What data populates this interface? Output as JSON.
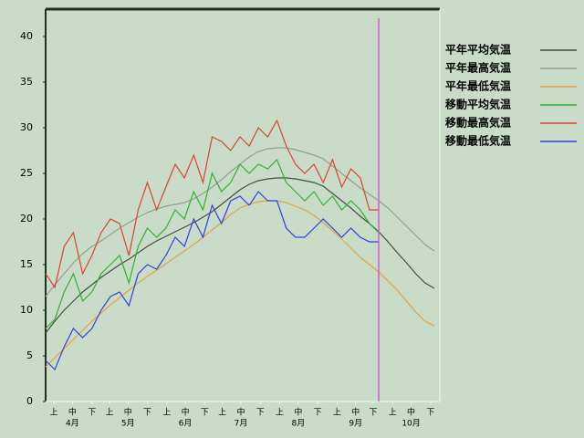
{
  "chart_data": {
    "type": "line",
    "x": [
      0,
      5,
      10,
      15,
      20,
      25,
      30,
      35,
      40,
      45,
      50,
      55,
      60,
      65,
      70,
      75,
      80,
      85,
      90,
      95,
      100,
      105,
      110,
      115,
      120,
      125,
      130,
      135,
      140,
      145,
      150,
      155,
      160,
      165,
      170,
      175,
      180,
      185,
      190,
      195,
      200,
      205,
      210
    ],
    "xlim": [
      0,
      213
    ],
    "ylim": [
      0,
      43
    ],
    "yticks": [
      0,
      5,
      10,
      15,
      20,
      25,
      30,
      35,
      40
    ],
    "xticks": [
      {
        "value": 4.5,
        "label": "上"
      },
      {
        "value": 14.5,
        "label": "中"
      },
      {
        "value": 25,
        "label": "下"
      },
      {
        "value": 34.5,
        "label": "上"
      },
      {
        "value": 44.5,
        "label": "中"
      },
      {
        "value": 55,
        "label": "下"
      },
      {
        "value": 65.5,
        "label": "上"
      },
      {
        "value": 75.5,
        "label": "中"
      },
      {
        "value": 86,
        "label": "下"
      },
      {
        "value": 95.5,
        "label": "上"
      },
      {
        "value": 105.5,
        "label": "中"
      },
      {
        "value": 116,
        "label": "下"
      },
      {
        "value": 126.5,
        "label": "上"
      },
      {
        "value": 136.5,
        "label": "中"
      },
      {
        "value": 147,
        "label": "下"
      },
      {
        "value": 157.5,
        "label": "上"
      },
      {
        "value": 167.5,
        "label": "中"
      },
      {
        "value": 177,
        "label": "下"
      },
      {
        "value": 187.5,
        "label": "上"
      },
      {
        "value": 197.5,
        "label": "中"
      },
      {
        "value": 208,
        "label": "下"
      }
    ],
    "month_ticks": [
      {
        "value": 14.5,
        "label": "4月"
      },
      {
        "value": 44.5,
        "label": "5月"
      },
      {
        "value": 75.5,
        "label": "6月"
      },
      {
        "value": 105.5,
        "label": "7月"
      },
      {
        "value": 136.5,
        "label": "8月"
      },
      {
        "value": 167.5,
        "label": "9月"
      },
      {
        "value": 197.5,
        "label": "10月"
      }
    ],
    "today_line": {
      "x": 180,
      "color": "#d060d0"
    },
    "series": [
      {
        "name": "平年平均気温",
        "color": "#405040",
        "values": [
          7.5,
          8.8,
          10,
          11,
          12,
          12.8,
          13.6,
          14.3,
          15,
          15.6,
          16.3,
          17,
          17.6,
          18.1,
          18.6,
          19.1,
          19.6,
          20.2,
          20.8,
          21.6,
          22.4,
          23.2,
          23.8,
          24.2,
          24.4,
          24.5,
          24.5,
          24.4,
          24.2,
          24,
          23.6,
          22.8,
          22,
          21.2,
          20.3,
          19.5,
          18.6,
          17.5,
          16.3,
          15.2,
          14,
          13,
          12.4
        ]
      },
      {
        "name": "平年最高気温",
        "color": "#90a090",
        "values": [
          11.5,
          12.8,
          14,
          15.2,
          16.2,
          17,
          17.6,
          18.3,
          19,
          19.6,
          20.2,
          20.7,
          21.1,
          21.4,
          21.6,
          21.8,
          22.2,
          22.8,
          23.5,
          24.3,
          25.2,
          26,
          26.8,
          27.4,
          27.7,
          27.8,
          27.8,
          27.6,
          27.3,
          27,
          26.6,
          25.8,
          25,
          24.2,
          23.4,
          22.7,
          22,
          21.2,
          20.2,
          19.2,
          18.2,
          17.2,
          16.5
        ]
      },
      {
        "name": "平年最低気温",
        "color": "#e8a040",
        "values": [
          3.8,
          4.8,
          5.8,
          6.8,
          7.8,
          8.8,
          9.7,
          10.6,
          11.4,
          12.2,
          13,
          13.7,
          14.4,
          15.1,
          15.8,
          16.5,
          17.2,
          18,
          18.8,
          19.6,
          20.5,
          21.2,
          21.6,
          21.9,
          22,
          22,
          21.8,
          21.4,
          21,
          20.4,
          19.6,
          18.7,
          17.8,
          16.8,
          15.8,
          15,
          14.2,
          13.2,
          12.2,
          11,
          9.8,
          8.8,
          8.3
        ]
      },
      {
        "name": "移動平均気温",
        "color": "#30b030",
        "values": [
          8,
          9,
          12,
          14,
          11,
          12,
          14,
          15,
          16,
          13,
          17,
          19,
          18,
          19,
          21,
          20,
          23,
          21,
          25,
          23,
          24,
          26,
          25,
          26,
          25.5,
          26.5,
          24,
          23,
          22,
          23,
          21.5,
          22.5,
          21,
          22,
          21,
          19.5,
          18.5,
          null,
          null,
          null,
          null,
          null,
          null
        ]
      },
      {
        "name": "移動最高気温",
        "color": "#e04030",
        "values": [
          14,
          12.5,
          17,
          18.5,
          14,
          16,
          18.5,
          20,
          19.5,
          16,
          21,
          24,
          21,
          23.5,
          26,
          24.5,
          27,
          24,
          29,
          28.5,
          27.5,
          29,
          28,
          30,
          29,
          30.8,
          28,
          26,
          25,
          26,
          24,
          26.5,
          23.5,
          25.5,
          24.5,
          21,
          21,
          null,
          null,
          null,
          null,
          null,
          null
        ]
      },
      {
        "name": "移動最低気温",
        "color": "#3040e0",
        "values": [
          4.5,
          3.5,
          6,
          8,
          7,
          8,
          10,
          11.5,
          12,
          10.5,
          14,
          15,
          14.5,
          16,
          18,
          17,
          20,
          18,
          21.5,
          19.5,
          22,
          22.5,
          21.5,
          23,
          22,
          22,
          19,
          18,
          18,
          19,
          20,
          19,
          18,
          19,
          18,
          17.5,
          17.5,
          null,
          null,
          null,
          null,
          null,
          null
        ]
      }
    ]
  }
}
